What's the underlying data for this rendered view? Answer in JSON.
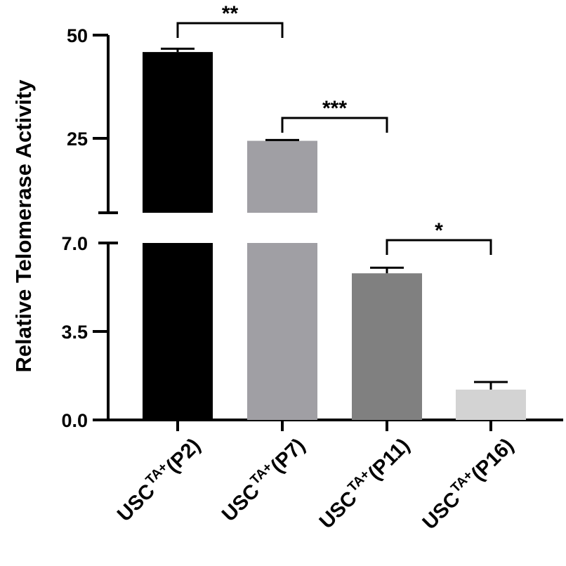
{
  "chart_data": {
    "type": "bar",
    "title": "",
    "xlabel": "",
    "ylabel": "Relative Telomerase Activity",
    "broken_axis": true,
    "y_segments": [
      {
        "name": "lower",
        "range": [
          0,
          7.0
        ],
        "ticks": [
          "0.0",
          "3.5",
          "7.0"
        ]
      },
      {
        "name": "upper",
        "range": [
          7.14,
          50
        ],
        "ticks": [
          "25",
          "50"
        ]
      }
    ],
    "categories": [
      "USC TA+ (P2)",
      "USC TA+ (P7)",
      "USC TA+ (P11)",
      "USC TA+ (P16)"
    ],
    "category_labels": [
      {
        "base": "USC",
        "sup": "TA+",
        "suffix": "(P2)"
      },
      {
        "base": "USC",
        "sup": "TA+",
        "suffix": "(P7)"
      },
      {
        "base": "USC",
        "sup": "TA+",
        "suffix": "(P11)"
      },
      {
        "base": "USC",
        "sup": "TA+",
        "suffix": "(P16)"
      }
    ],
    "values": [
      45.9,
      24.4,
      5.8,
      1.2
    ],
    "errors": [
      0.8,
      0.2,
      0.22,
      0.3
    ],
    "colors": [
      "#000000",
      "#a09fa4",
      "#808080",
      "#d3d3d3"
    ],
    "significance": [
      {
        "from": 0,
        "to": 1,
        "label": "**"
      },
      {
        "from": 1,
        "to": 2,
        "label": "***"
      },
      {
        "from": 2,
        "to": 3,
        "label": "*"
      }
    ],
    "grid": false,
    "legend": null
  }
}
